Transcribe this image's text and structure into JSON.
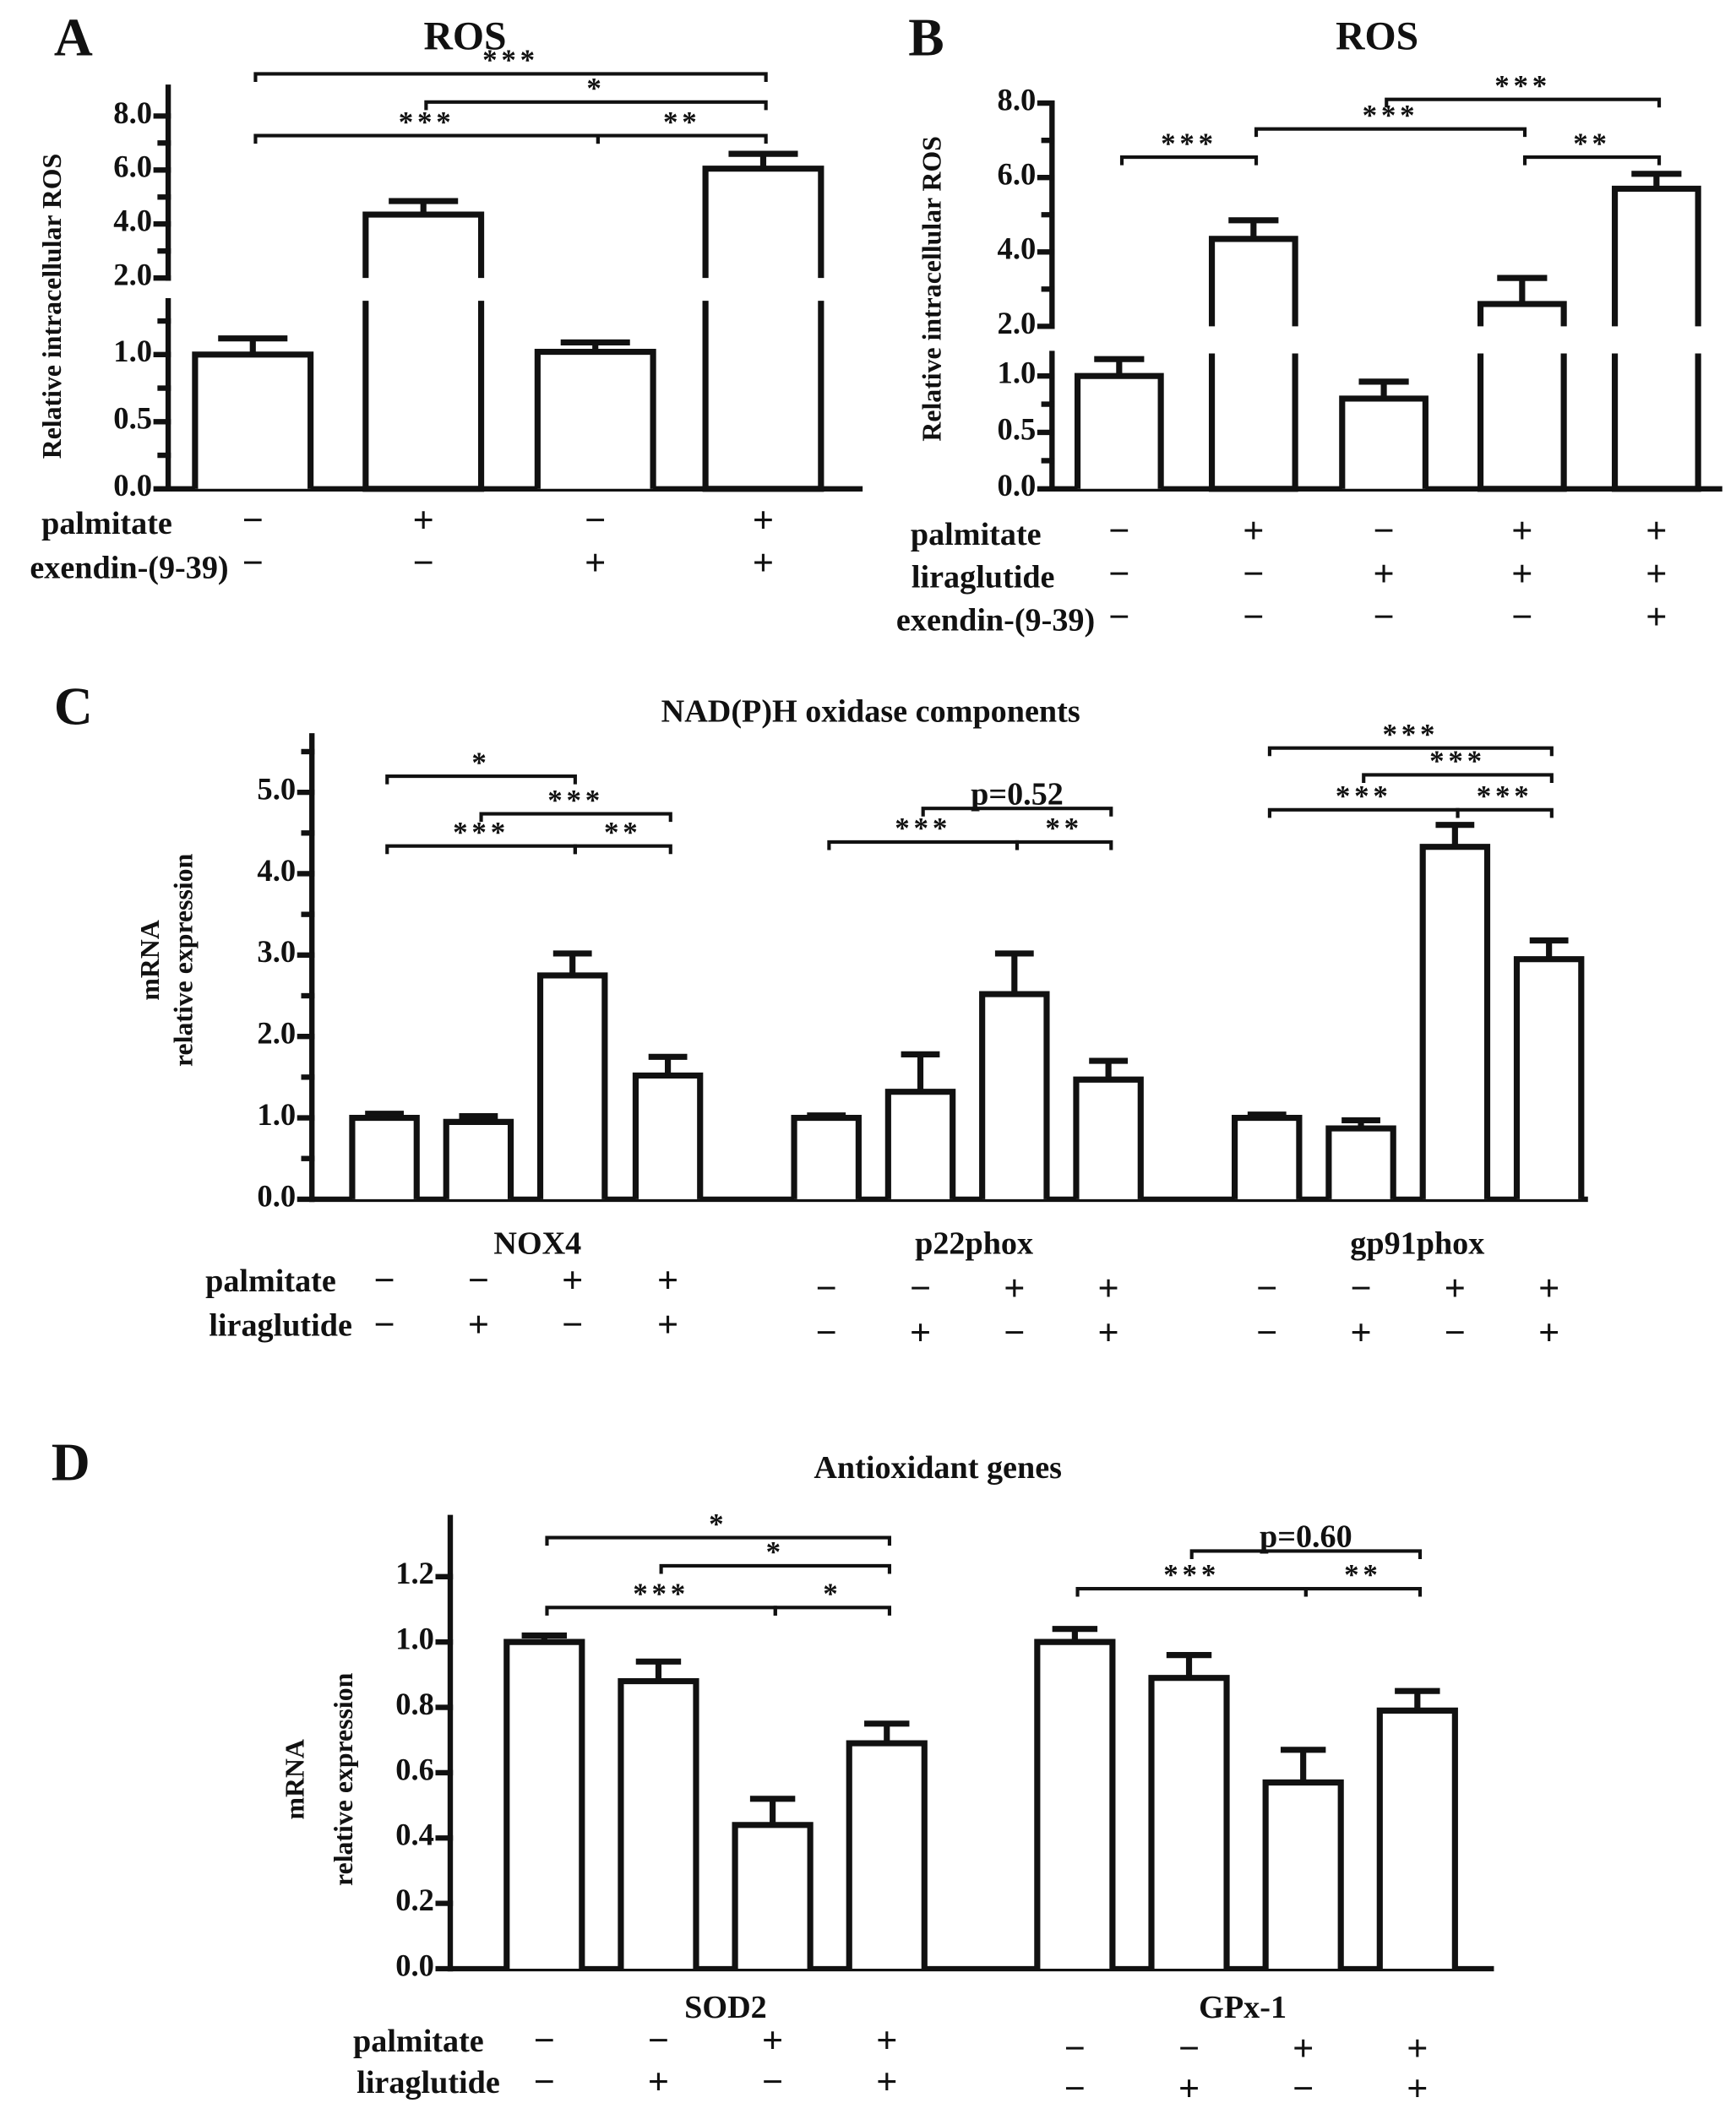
{
  "chart_data": [
    {
      "id": "A",
      "type": "bar",
      "panel_label": "A",
      "title": "ROS",
      "ylabel": [
        "Relative intracellular ROS"
      ],
      "ylim": [
        0,
        9.0
      ],
      "axis_break": [
        1.4,
        2.0
      ],
      "ticks": [
        "0.0",
        "0.5",
        "1.0",
        "2.0",
        "4.0",
        "6.0",
        "8.0"
      ],
      "minor_ticks": [
        0.25,
        0.75,
        1.25,
        3,
        5,
        7
      ],
      "groups": [
        {
          "category": "",
          "bars": [
            {
              "value": 1.0,
              "err": 1.12
            },
            {
              "value": 4.35,
              "err": 4.85
            },
            {
              "value": 1.02,
              "err": 1.09
            },
            {
              "value": 6.05,
              "err": 6.6
            }
          ]
        }
      ],
      "brackets": [
        {
          "from": 0,
          "to": 3,
          "label": "***"
        },
        {
          "from": 1,
          "to": 3,
          "label": "*"
        },
        {
          "from": 0,
          "to": 2,
          "label": "***"
        },
        {
          "from": 2,
          "to": 3,
          "label": "**"
        }
      ],
      "treatments": [
        {
          "name": "palmitate",
          "signs": [
            "−",
            "+",
            "−",
            "+"
          ]
        },
        {
          "name": "exendin-(9-39)",
          "signs": [
            "−",
            "−",
            "+",
            "+"
          ]
        }
      ]
    },
    {
      "id": "B",
      "type": "bar",
      "panel_label": "B",
      "title": "ROS",
      "ylabel": [
        "Relative intracellular ROS"
      ],
      "ylim": [
        0,
        8.0
      ],
      "axis_break": [
        1.2,
        2.0
      ],
      "ticks": [
        "0.0",
        "0.5",
        "1.0",
        "2.0",
        "4.0",
        "6.0",
        "8.0"
      ],
      "minor_ticks": [
        0.25,
        0.75,
        3,
        5,
        7
      ],
      "groups": [
        {
          "category": "",
          "bars": [
            {
              "value": 1.0,
              "err": 1.15
            },
            {
              "value": 4.35,
              "err": 4.85
            },
            {
              "value": 0.8,
              "err": 0.95
            },
            {
              "value": 2.6,
              "err": 3.3
            },
            {
              "value": 5.7,
              "err": 6.1
            }
          ]
        }
      ],
      "brackets": [
        {
          "from": 0,
          "to": 1,
          "label": "***"
        },
        {
          "from": 1,
          "to": 3,
          "label": "***"
        },
        {
          "from": 2,
          "to": 4,
          "label": "***"
        },
        {
          "from": 3,
          "to": 4,
          "label": "**"
        }
      ],
      "treatments": [
        {
          "name": "palmitate",
          "signs": [
            "−",
            "+",
            "−",
            "+",
            "+"
          ]
        },
        {
          "name": "liraglutide",
          "signs": [
            "−",
            "−",
            "+",
            "+",
            "+"
          ]
        },
        {
          "name": "exendin-(9-39)",
          "signs": [
            "−",
            "−",
            "−",
            "−",
            "+"
          ]
        }
      ]
    },
    {
      "id": "C",
      "type": "bar",
      "panel_label": "C",
      "title": "NAD(P)H oxidase components",
      "ylabel": [
        "mRNA",
        "relative expression"
      ],
      "ylim": [
        0,
        5.7
      ],
      "ticks": [
        "0.0",
        "1.0",
        "2.0",
        "3.0",
        "4.0",
        "5.0"
      ],
      "minor_ticks": [
        0.5,
        1.5,
        2.5,
        3.5,
        4.5,
        5.5
      ],
      "groups": [
        {
          "category": "NOX4",
          "bars": [
            {
              "value": 1.0,
              "err": 1.05
            },
            {
              "value": 0.95,
              "err": 1.02
            },
            {
              "value": 2.75,
              "err": 3.02
            },
            {
              "value": 1.52,
              "err": 1.75
            }
          ]
        },
        {
          "category": "p22phox",
          "bars": [
            {
              "value": 1.0,
              "err": 1.03
            },
            {
              "value": 1.32,
              "err": 1.78
            },
            {
              "value": 2.52,
              "err": 3.02
            },
            {
              "value": 1.47,
              "err": 1.7
            }
          ]
        },
        {
          "category": "gp91phox",
          "bars": [
            {
              "value": 1.0,
              "err": 1.04
            },
            {
              "value": 0.87,
              "err": 0.97
            },
            {
              "value": 4.33,
              "err": 4.6
            },
            {
              "value": 2.95,
              "err": 3.18
            }
          ]
        }
      ],
      "brackets": [
        {
          "group": 0,
          "from": 0,
          "to": 2,
          "label": "*"
        },
        {
          "group": 0,
          "from": 1,
          "to": 3,
          "label": "***"
        },
        {
          "group": 0,
          "from": 0,
          "to": 2,
          "label": "***"
        },
        {
          "group": 0,
          "from": 2,
          "to": 3,
          "label": "**"
        },
        {
          "group": 1,
          "from": 1,
          "to": 3,
          "label": "p=0.52"
        },
        {
          "group": 1,
          "from": 0,
          "to": 2,
          "label": "***"
        },
        {
          "group": 1,
          "from": 2,
          "to": 3,
          "label": "**"
        },
        {
          "group": 2,
          "from": 0,
          "to": 3,
          "label": "***"
        },
        {
          "group": 2,
          "from": 1,
          "to": 3,
          "label": "***"
        },
        {
          "group": 2,
          "from": 0,
          "to": 2,
          "label": "***"
        },
        {
          "group": 2,
          "from": 2,
          "to": 3,
          "label": "***"
        }
      ],
      "treatments": [
        {
          "name": "palmitate",
          "signs": [
            "−",
            "−",
            "+",
            "+"
          ]
        },
        {
          "name": "liraglutide",
          "signs": [
            "−",
            "+",
            "−",
            "+"
          ]
        }
      ]
    },
    {
      "id": "D",
      "type": "bar",
      "panel_label": "D",
      "title": "Antioxidant genes",
      "ylabel": [
        "mRNA",
        "relative expression"
      ],
      "ylim": [
        0,
        1.38
      ],
      "ticks": [
        "0.0",
        "0.2",
        "0.4",
        "0.6",
        "0.8",
        "1.0",
        "1.2"
      ],
      "minor_ticks": [],
      "groups": [
        {
          "category": "SOD2",
          "bars": [
            {
              "value": 1.0,
              "err": 1.02
            },
            {
              "value": 0.88,
              "err": 0.94
            },
            {
              "value": 0.44,
              "err": 0.52
            },
            {
              "value": 0.69,
              "err": 0.75
            }
          ]
        },
        {
          "category": "GPx-1",
          "bars": [
            {
              "value": 1.0,
              "err": 1.04
            },
            {
              "value": 0.89,
              "err": 0.96
            },
            {
              "value": 0.57,
              "err": 0.67
            },
            {
              "value": 0.79,
              "err": 0.85
            }
          ]
        }
      ],
      "brackets": [
        {
          "group": 0,
          "from": 0,
          "to": 3,
          "label": "*"
        },
        {
          "group": 0,
          "from": 1,
          "to": 3,
          "label": "*"
        },
        {
          "group": 0,
          "from": 0,
          "to": 2,
          "label": "***"
        },
        {
          "group": 0,
          "from": 2,
          "to": 3,
          "label": "*"
        },
        {
          "group": 1,
          "from": 1,
          "to": 3,
          "label": "p=0.60"
        },
        {
          "group": 1,
          "from": 0,
          "to": 2,
          "label": "***"
        },
        {
          "group": 1,
          "from": 2,
          "to": 3,
          "label": "**"
        }
      ],
      "treatments": [
        {
          "name": "palmitate",
          "signs": [
            "−",
            "−",
            "+",
            "+"
          ]
        },
        {
          "name": "liraglutide",
          "signs": [
            "−",
            "+",
            "−",
            "+"
          ]
        }
      ]
    }
  ]
}
